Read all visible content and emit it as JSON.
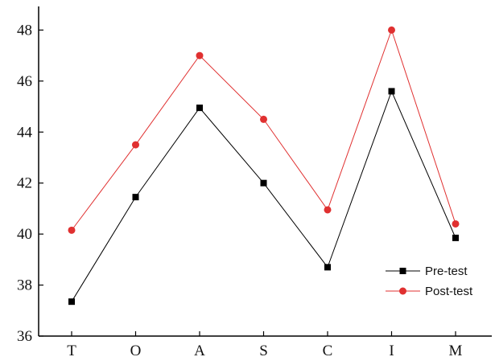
{
  "chart_data": {
    "type": "line",
    "categories": [
      "T",
      "O",
      "A",
      "S",
      "C",
      "I",
      "M"
    ],
    "series": [
      {
        "name": "Pre-test",
        "values": [
          37.35,
          41.45,
          44.95,
          42.0,
          38.7,
          45.6,
          39.85
        ],
        "color": "#000000",
        "marker": "square"
      },
      {
        "name": "Post-test",
        "values": [
          40.15,
          43.5,
          47.0,
          44.5,
          40.95,
          48.0,
          40.4
        ],
        "color": "#e03030",
        "marker": "circle"
      }
    ],
    "y_ticks": [
      "36",
      "38",
      "40",
      "42",
      "44",
      "46",
      "48"
    ],
    "ylim": [
      36,
      48.8
    ],
    "grid": false,
    "legend_position": "bottom-right",
    "title": "",
    "xlabel": "",
    "ylabel": ""
  }
}
